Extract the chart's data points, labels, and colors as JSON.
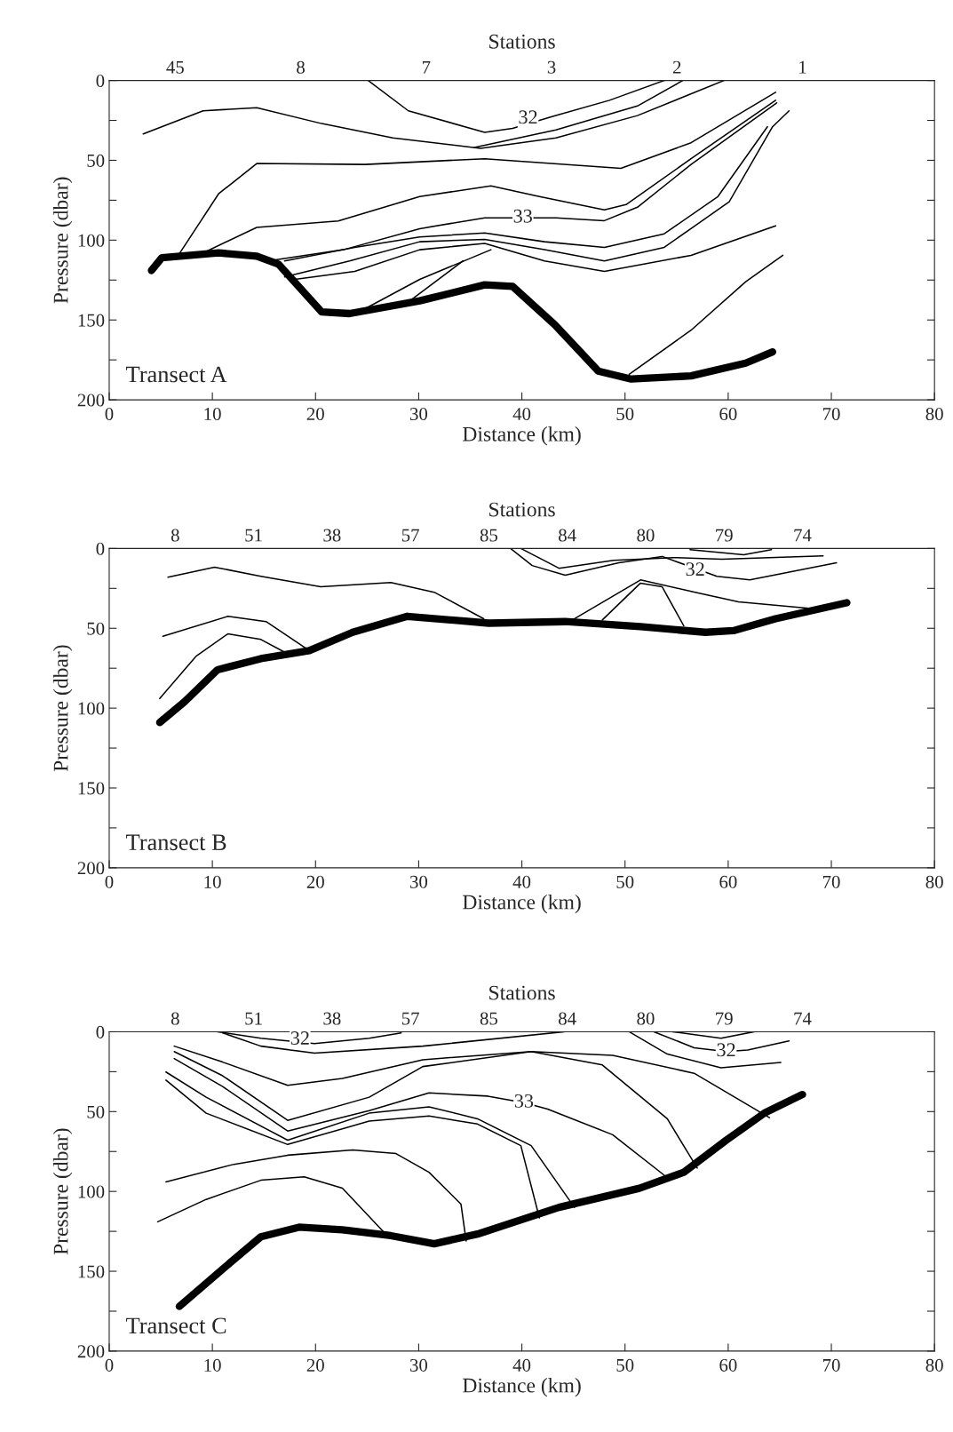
{
  "chart_data": [
    {
      "type": "line",
      "title": "Stations",
      "xlabel": "Distance (km)",
      "ylabel": "Pressure (dbar)",
      "xlim": [
        0,
        80
      ],
      "xticks": [
        0,
        10,
        20,
        30,
        40,
        50,
        60,
        70,
        80
      ],
      "ylim": [
        200,
        0
      ],
      "yticks": [
        0,
        {
          "value": 25,
          "label": null
        },
        50,
        {
          "value": 75,
          "label": null
        },
        100,
        {
          "value": 125,
          "label": null
        },
        150,
        {
          "value": 175,
          "label": null
        },
        200
      ],
      "legend": false,
      "grid": false,
      "annotations": [
        "45",
        "8",
        "7",
        "3",
        "2",
        "1",
        "Transect A",
        {
          "text": "32",
          "x": 40.6,
          "y": 24
        },
        {
          "text": "33",
          "x": 40.1,
          "y": 86
        }
      ],
      "series": [
        {
          "color": "#000000",
          "x": [
            4.1,
            5.1,
            10.6,
            14.3,
            16.4,
            20.6,
            23.3,
            30.1,
            36.4,
            39.1,
            43.2,
            47.4,
            50.6,
            56.4,
            61.7,
            64.3
          ],
          "values": [
            119,
            111,
            108,
            110,
            115,
            145,
            146,
            138,
            128,
            129,
            153,
            182,
            187,
            185,
            177,
            170
          ]
        },
        {
          "color": "#000000",
          "x": [
            3.3,
            9.1,
            14.3,
            20.6,
            27.5,
            36,
            43.3,
            51.2,
            59.6
          ],
          "values": [
            33.5,
            19,
            17,
            27,
            36,
            42.5,
            36,
            22,
            0
          ]
        },
        {
          "color": "#000000",
          "x": [
            25.1,
            29,
            36.4,
            39.1,
            43,
            48.5,
            53.8
          ],
          "values": [
            0,
            19,
            32.5,
            30,
            22.5,
            12.4,
            0
          ]
        },
        {
          "color": "#000000",
          "x": [
            35.4,
            43.3,
            51.2,
            55.6
          ],
          "values": [
            42,
            31,
            16,
            0
          ]
        },
        {
          "color": "#000000",
          "x": [
            6.7,
            10.6,
            14.3,
            24.8,
            36.4,
            49.6,
            56.4,
            64.6
          ],
          "values": [
            109.5,
            71,
            52,
            52.6,
            49,
            55,
            39,
            7.4
          ]
        },
        {
          "color": "#000000",
          "x": [
            9.1,
            14.3,
            22.2,
            30.1,
            37,
            41.7,
            48,
            50.1,
            56.4,
            64.6
          ],
          "values": [
            108,
            92,
            88,
            72.7,
            66,
            72.7,
            81,
            77.7,
            49,
            12.4
          ]
        },
        {
          "color": "#000000",
          "x": [
            15.4,
            22.7,
            30.1,
            36.4,
            43.3,
            48,
            51.2,
            56.4,
            64.7
          ],
          "values": [
            113,
            106,
            92.8,
            86,
            86,
            87.8,
            79.4,
            52.6,
            14
          ]
        },
        {
          "color": "#000000",
          "x": [
            17,
            23.8,
            30.1,
            36.4,
            42.2,
            48,
            53.8,
            59,
            63.8
          ],
          "values": [
            113,
            104.5,
            98,
            95.5,
            101,
            104.5,
            96,
            72.7,
            29
          ]
        },
        {
          "color": "#000000",
          "x": [
            17,
            23.3,
            30.1,
            36.4,
            42.2,
            48,
            53.8,
            60.1,
            64.3,
            65.9
          ],
          "values": [
            123,
            113,
            101,
            99.5,
            106,
            113,
            104.5,
            76,
            29,
            19
          ]
        },
        {
          "color": "#000000",
          "x": [
            18,
            23.8,
            30.1,
            36.4,
            42.2,
            48,
            56.4,
            64.6
          ],
          "values": [
            124.6,
            119.6,
            106,
            102,
            113,
            119.6,
            109.5,
            91
          ]
        },
        {
          "color": "#000000",
          "x": [
            23.8,
            30.1,
            37
          ],
          "values": [
            146.4,
            124.6,
            106
          ]
        },
        {
          "color": "#000000",
          "x": [
            29,
            34.3
          ],
          "values": [
            138.7,
            113
          ]
        },
        {
          "color": "#000000",
          "x": [
            50.4,
            56.4,
            61.7,
            65.3
          ],
          "values": [
            184,
            156.4,
            126,
            109.5
          ]
        }
      ]
    },
    {
      "type": "line",
      "title": "Stations",
      "xlabel": "Distance (km)",
      "ylabel": "Pressure (dbar)",
      "xlim": [
        0,
        80
      ],
      "xticks": [
        0,
        10,
        20,
        30,
        40,
        50,
        60,
        70,
        80
      ],
      "ylim": [
        200,
        0
      ],
      "yticks": [
        0,
        {
          "value": 25,
          "label": null
        },
        50,
        {
          "value": 75,
          "label": null
        },
        100,
        {
          "value": 125,
          "label": null
        },
        150,
        {
          "value": 175,
          "label": null
        },
        200
      ],
      "legend": false,
      "grid": false,
      "annotations": [
        "8",
        "51",
        "38",
        "57",
        "85",
        "84",
        "80",
        "79",
        "74",
        "Transect B",
        {
          "text": "32",
          "x": 56.8,
          "y": 14
        }
      ],
      "series": [
        {
          "color": "#000000",
          "x": [
            4.9,
            7.3,
            10.5,
            14.7,
            19.4,
            23.6,
            28.9,
            36.8,
            44.2,
            51.5,
            57.8,
            60.5,
            64.6,
            71.5
          ],
          "values": [
            109,
            96,
            76,
            69,
            64,
            52.5,
            42.5,
            46.8,
            45.8,
            49,
            52.5,
            51.5,
            44,
            34
          ]
        },
        {
          "color": "#000000",
          "x": [
            5.7,
            10.2,
            14.7,
            20.5,
            27.3,
            31.5,
            36.3
          ],
          "values": [
            18,
            11.7,
            17.4,
            24,
            21.4,
            27.4,
            44
          ]
        },
        {
          "color": "#000000",
          "x": [
            5.2,
            11.5,
            15.2,
            19.4
          ],
          "values": [
            55,
            42.5,
            45.8,
            64
          ]
        },
        {
          "color": "#000000",
          "x": [
            4.9,
            8.4,
            11.5,
            14.7,
            17.3
          ],
          "values": [
            94,
            67.6,
            53.5,
            57,
            66
          ]
        },
        {
          "color": "#000000",
          "x": [
            44.9,
            51.5,
            56.8,
            61,
            67.8
          ],
          "values": [
            44.8,
            19.7,
            27.4,
            33.4,
            37.5
          ]
        },
        {
          "color": "#000000",
          "x": [
            47.8,
            51.5,
            53.6,
            55.7
          ],
          "values": [
            44.8,
            21.7,
            24,
            48.5
          ]
        },
        {
          "color": "#000000",
          "x": [
            38.9,
            41,
            44.2,
            49.4,
            53.6,
            58.9,
            62.1,
            70.5
          ],
          "values": [
            0,
            10.7,
            16.7,
            9,
            5,
            17.4,
            19.7,
            9
          ]
        },
        {
          "color": "#000000",
          "x": [
            39.9,
            43.6,
            48.9,
            54.7,
            59.4,
            69.2
          ],
          "values": [
            0,
            12.4,
            7.4,
            5.7,
            6.7,
            4.7
          ]
        },
        {
          "color": "#000000",
          "x": [
            56.3,
            61.5,
            64.2
          ],
          "values": [
            0.7,
            4,
            0.7
          ]
        }
      ]
    },
    {
      "type": "line",
      "title": "Stations",
      "xlabel": "Distance (km)",
      "ylabel": "Pressure (dbar)",
      "xlim": [
        0,
        80
      ],
      "xticks": [
        0,
        10,
        20,
        30,
        40,
        50,
        60,
        70,
        80
      ],
      "ylim": [
        200,
        0
      ],
      "yticks": [
        0,
        {
          "value": 25,
          "label": null
        },
        50,
        {
          "value": 75,
          "label": null
        },
        100,
        {
          "value": 125,
          "label": null
        },
        150,
        {
          "value": 175,
          "label": null
        },
        200
      ],
      "legend": false,
      "grid": false,
      "annotations": [
        "8",
        "51",
        "38",
        "57",
        "85",
        "84",
        "80",
        "79",
        "74",
        "Transect C",
        {
          "text": "32",
          "x": 18.5,
          "y": 5
        },
        {
          "text": "32",
          "x": 59.8,
          "y": 12.4
        },
        {
          "text": "33",
          "x": 40.2,
          "y": 44.4
        }
      ],
      "series": [
        {
          "color": "#000000",
          "x": [
            6.8,
            11,
            14.7,
            18.4,
            22.6,
            27.3,
            31.5,
            35.7,
            43.6,
            51.4,
            55.7,
            59.8,
            63.5,
            67.2
          ],
          "values": [
            172,
            148.6,
            128.4,
            122.4,
            124,
            127.7,
            132.8,
            126.7,
            110,
            98,
            88,
            68,
            51,
            39.3
          ]
        },
        {
          "color": "#000000",
          "x": [
            10.5,
            14.7,
            19.9,
            25.2,
            28.3
          ],
          "values": [
            0,
            4,
            7.4,
            4,
            0.7
          ]
        },
        {
          "color": "#000000",
          "x": [
            11,
            14.7,
            19.9,
            30.4,
            44.1
          ],
          "values": [
            0.7,
            9,
            13.4,
            9,
            0
          ]
        },
        {
          "color": "#000000",
          "x": [
            6.3,
            11,
            17.3,
            22.6,
            30.4,
            40.9,
            48.8,
            56.7,
            64
          ],
          "values": [
            9,
            19,
            33.6,
            29.2,
            17.5,
            12.4,
            14.8,
            26,
            53.8
          ]
        },
        {
          "color": "#000000",
          "x": [
            6.3,
            11,
            17.3,
            25.2,
            30.4,
            40.9,
            47.8,
            54.1,
            57
          ],
          "values": [
            12.4,
            27.6,
            55.5,
            41,
            21.8,
            12.4,
            20.8,
            54.5,
            85.4
          ]
        },
        {
          "color": "#000000",
          "x": [
            6.3,
            11,
            17.3,
            25.2,
            31,
            36.7,
            40.2,
            42.5,
            48.8,
            54.3
          ],
          "values": [
            16.8,
            34.3,
            62.2,
            49.4,
            38.3,
            40.3,
            44.4,
            48.4,
            64.5,
            92.4
          ]
        },
        {
          "color": "#000000",
          "x": [
            5.5,
            9.4,
            17.3,
            25.2,
            31,
            35.7,
            40.9,
            45.1
          ],
          "values": [
            25.2,
            41,
            67.9,
            51,
            47,
            54.5,
            71.3,
            110
          ]
        },
        {
          "color": "#000000",
          "x": [
            5.5,
            9.4,
            17.3,
            25.2,
            31,
            35.7,
            39.9,
            41.7
          ],
          "values": [
            30.3,
            51,
            70.6,
            56,
            52.8,
            57.8,
            71.3,
            116.6
          ]
        },
        {
          "color": "#000000",
          "x": [
            5.5,
            12.1,
            17.3,
            23.6,
            27.8,
            31,
            34.1,
            34.6
          ],
          "values": [
            94,
            83,
            77.3,
            74,
            76.3,
            88,
            108,
            131
          ]
        },
        {
          "color": "#000000",
          "x": [
            4.7,
            9.4,
            14.7,
            18.9,
            22.6,
            26.8
          ],
          "values": [
            119,
            105,
            93,
            90.8,
            98,
            126.7
          ]
        },
        {
          "color": "#000000",
          "x": [
            52.8,
            56.7,
            59.8,
            61.9,
            65.9
          ],
          "values": [
            0,
            10,
            12.4,
            11.4,
            5.7
          ]
        },
        {
          "color": "#000000",
          "x": [
            50.4,
            54.1,
            59.3,
            65.1
          ],
          "values": [
            0,
            14,
            22.5,
            19.2
          ]
        },
        {
          "color": "#000000",
          "x": [
            54.6,
            59.3,
            62.5
          ],
          "values": [
            0,
            4,
            0
          ]
        }
      ]
    }
  ]
}
